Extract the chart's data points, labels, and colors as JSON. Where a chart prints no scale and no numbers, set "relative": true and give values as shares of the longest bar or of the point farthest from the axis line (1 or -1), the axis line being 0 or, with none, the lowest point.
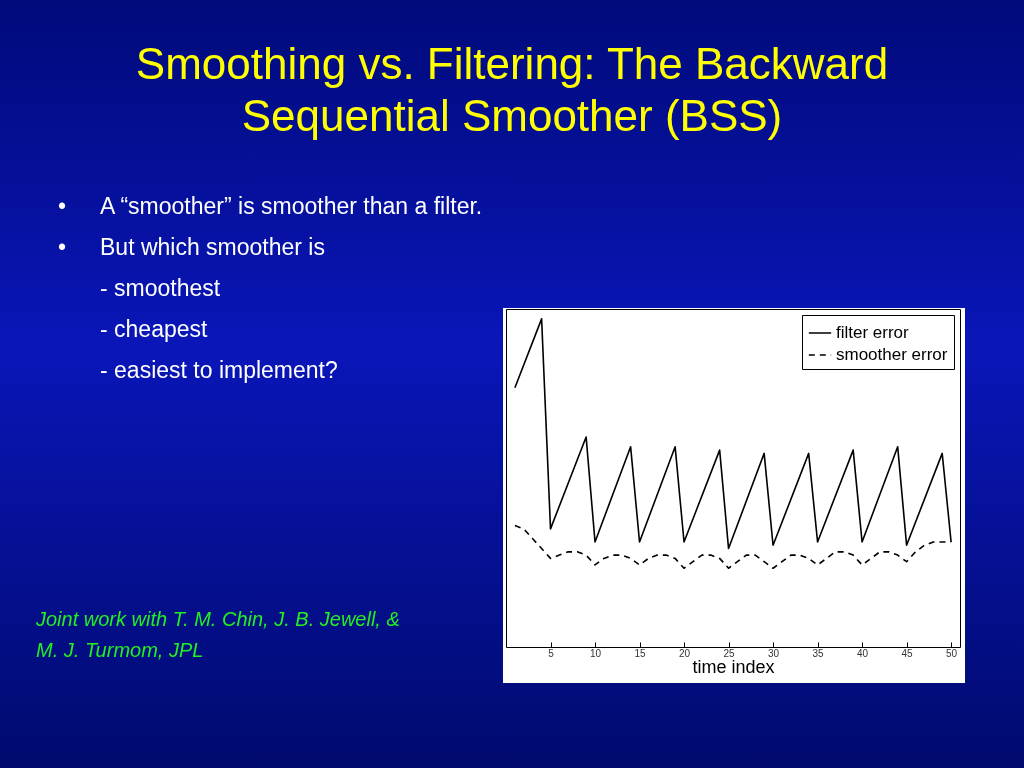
{
  "chart_data": {
    "type": "line",
    "title": "Smoothing vs. Filtering: The Backward Sequential Smoother (BSS)",
    "xlabel": "time index",
    "relative": true,
    "xlim": [
      0,
      51
    ],
    "xticks": [
      5,
      10,
      15,
      20,
      25,
      30,
      35,
      40,
      45,
      50
    ],
    "tick_labels": "x",
    "legend": "top right",
    "marker": "none",
    "annotations": [
      "•\tA “smoother” is smoother than a filter.",
      "•\tBut which smoother is",
      "\t- smoothest",
      "\t- cheapest",
      "\t- easiest to implement?",
      "Joint work with T. M. Chin, J. B. Jewell, & M. J. Turmom, JPL"
    ],
    "series": [
      {
        "name": "filter error",
        "color": "#000000",
        "line_style": "solid",
        "x": [
          1,
          4,
          5,
          9,
          10,
          14,
          15,
          19,
          20,
          24,
          25,
          29,
          30,
          34,
          35,
          39,
          40,
          44,
          45,
          49,
          50
        ],
        "values": [
          0.79,
          1,
          0.36,
          0.64,
          0.32,
          0.61,
          0.32,
          0.61,
          0.32,
          0.6,
          0.3,
          0.59,
          0.31,
          0.59,
          0.32,
          0.6,
          0.32,
          0.61,
          0.31,
          0.59,
          0.32
        ]
      },
      {
        "name": "smoother error",
        "color": "#000000",
        "line_style": "dashed",
        "x": [
          1,
          2,
          3,
          4,
          5,
          6,
          7,
          8,
          9,
          10,
          11,
          12,
          13,
          14,
          15,
          16,
          17,
          18,
          19,
          20,
          21,
          22,
          23,
          24,
          25,
          26,
          27,
          28,
          29,
          30,
          31,
          32,
          33,
          34,
          35,
          36,
          37,
          38,
          39,
          40,
          41,
          42,
          43,
          44,
          45,
          46,
          47,
          48,
          49,
          50
        ],
        "values": [
          0.37,
          0.36,
          0.33,
          0.3,
          0.27,
          0.28,
          0.29,
          0.29,
          0.28,
          0.25,
          0.27,
          0.28,
          0.28,
          0.27,
          0.25,
          0.27,
          0.28,
          0.28,
          0.27,
          0.24,
          0.26,
          0.28,
          0.28,
          0.27,
          0.24,
          0.26,
          0.28,
          0.28,
          0.26,
          0.24,
          0.26,
          0.28,
          0.28,
          0.27,
          0.25,
          0.27,
          0.29,
          0.29,
          0.28,
          0.25,
          0.27,
          0.29,
          0.29,
          0.28,
          0.26,
          0.29,
          0.31,
          0.32,
          0.32,
          0.32
        ]
      }
    ]
  }
}
